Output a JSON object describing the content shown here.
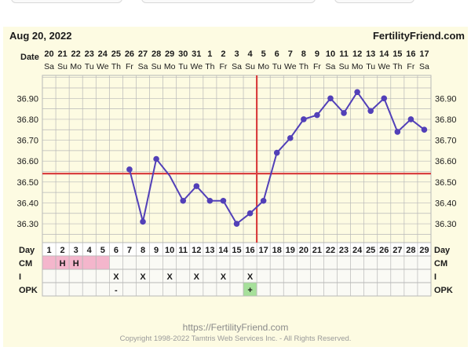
{
  "header": {
    "date": "Aug 20, 2022",
    "site": "FertilityFriend.com"
  },
  "row_labels": {
    "date": "Date",
    "day": "Day",
    "cm": "CM",
    "intercourse": "I",
    "opk": "OPK"
  },
  "dates": [
    "20",
    "21",
    "22",
    "23",
    "24",
    "25",
    "26",
    "27",
    "28",
    "29",
    "30",
    "31",
    "1",
    "2",
    "3",
    "4",
    "5",
    "6",
    "7",
    "8",
    "9",
    "10",
    "11",
    "12",
    "13",
    "14",
    "15",
    "16",
    "17"
  ],
  "weekdays": [
    "Sa",
    "Su",
    "Mo",
    "Tu",
    "We",
    "Th",
    "Fr",
    "Sa",
    "Su",
    "Mo",
    "Tu",
    "We",
    "Th",
    "Fr",
    "Sa",
    "Su",
    "Mo",
    "Tu",
    "We",
    "Th",
    "Fr",
    "Sa",
    "Su",
    "Mo",
    "Tu",
    "We",
    "Th",
    "Fr",
    "Sa"
  ],
  "chart_data": {
    "type": "line",
    "x": [
      1,
      2,
      3,
      4,
      5,
      6,
      7,
      8,
      9,
      10,
      11,
      12,
      13,
      14,
      15,
      16,
      17,
      18,
      19,
      20,
      21,
      22,
      23,
      24,
      25,
      26,
      27,
      28,
      29
    ],
    "series": [
      {
        "values": [
          null,
          null,
          null,
          null,
          null,
          null,
          36.56,
          36.31,
          36.61,
          36.53,
          36.41,
          36.48,
          36.41,
          36.41,
          36.3,
          36.35,
          36.41,
          36.64,
          36.71,
          36.8,
          36.82,
          36.9,
          36.83,
          36.93,
          36.84,
          36.9,
          36.74,
          36.8,
          36.75
        ]
      }
    ],
    "ylim": [
      36.21,
      37.01
    ],
    "yticks": [
      "36.30",
      "36.40",
      "36.50",
      "36.60",
      "36.70",
      "36.80",
      "36.90"
    ],
    "coverline": 36.54,
    "ovulation_day": 17,
    "line_color": "#5240b8",
    "coverline_color": "#d94040"
  },
  "cm": [
    "",
    "H",
    "H",
    "",
    "",
    "",
    "",
    "",
    "",
    "",
    "",
    "",
    "",
    "",
    "",
    "",
    "",
    "",
    "",
    "",
    "",
    "",
    "",
    "",
    "",
    "",
    "",
    "",
    ""
  ],
  "intercourse": [
    "",
    "",
    "",
    "",
    "",
    "X",
    "",
    "X",
    "",
    "X",
    "",
    "X",
    "",
    "X",
    "",
    "X",
    "",
    "",
    "",
    "",
    "",
    "",
    "",
    "",
    "",
    "",
    "",
    "",
    ""
  ],
  "opk": [
    "",
    "",
    "",
    "",
    "",
    "-",
    "",
    "",
    "",
    "",
    "",
    "",
    "",
    "",
    "",
    "+",
    "",
    "",
    "",
    "",
    "",
    "",
    "",
    "",
    "",
    "",
    "",
    "",
    ""
  ],
  "colors": {
    "cm_fill": "#f4b6cc",
    "opk_positive": "#a6e09a",
    "grid": "#b8b8b8",
    "background": "#fdfbe2"
  },
  "footer": {
    "url": "https://FertilityFriend.com",
    "copyright": "Copyright 1998-2022 Tamtris Web Services Inc. - All Rights Reserved."
  }
}
